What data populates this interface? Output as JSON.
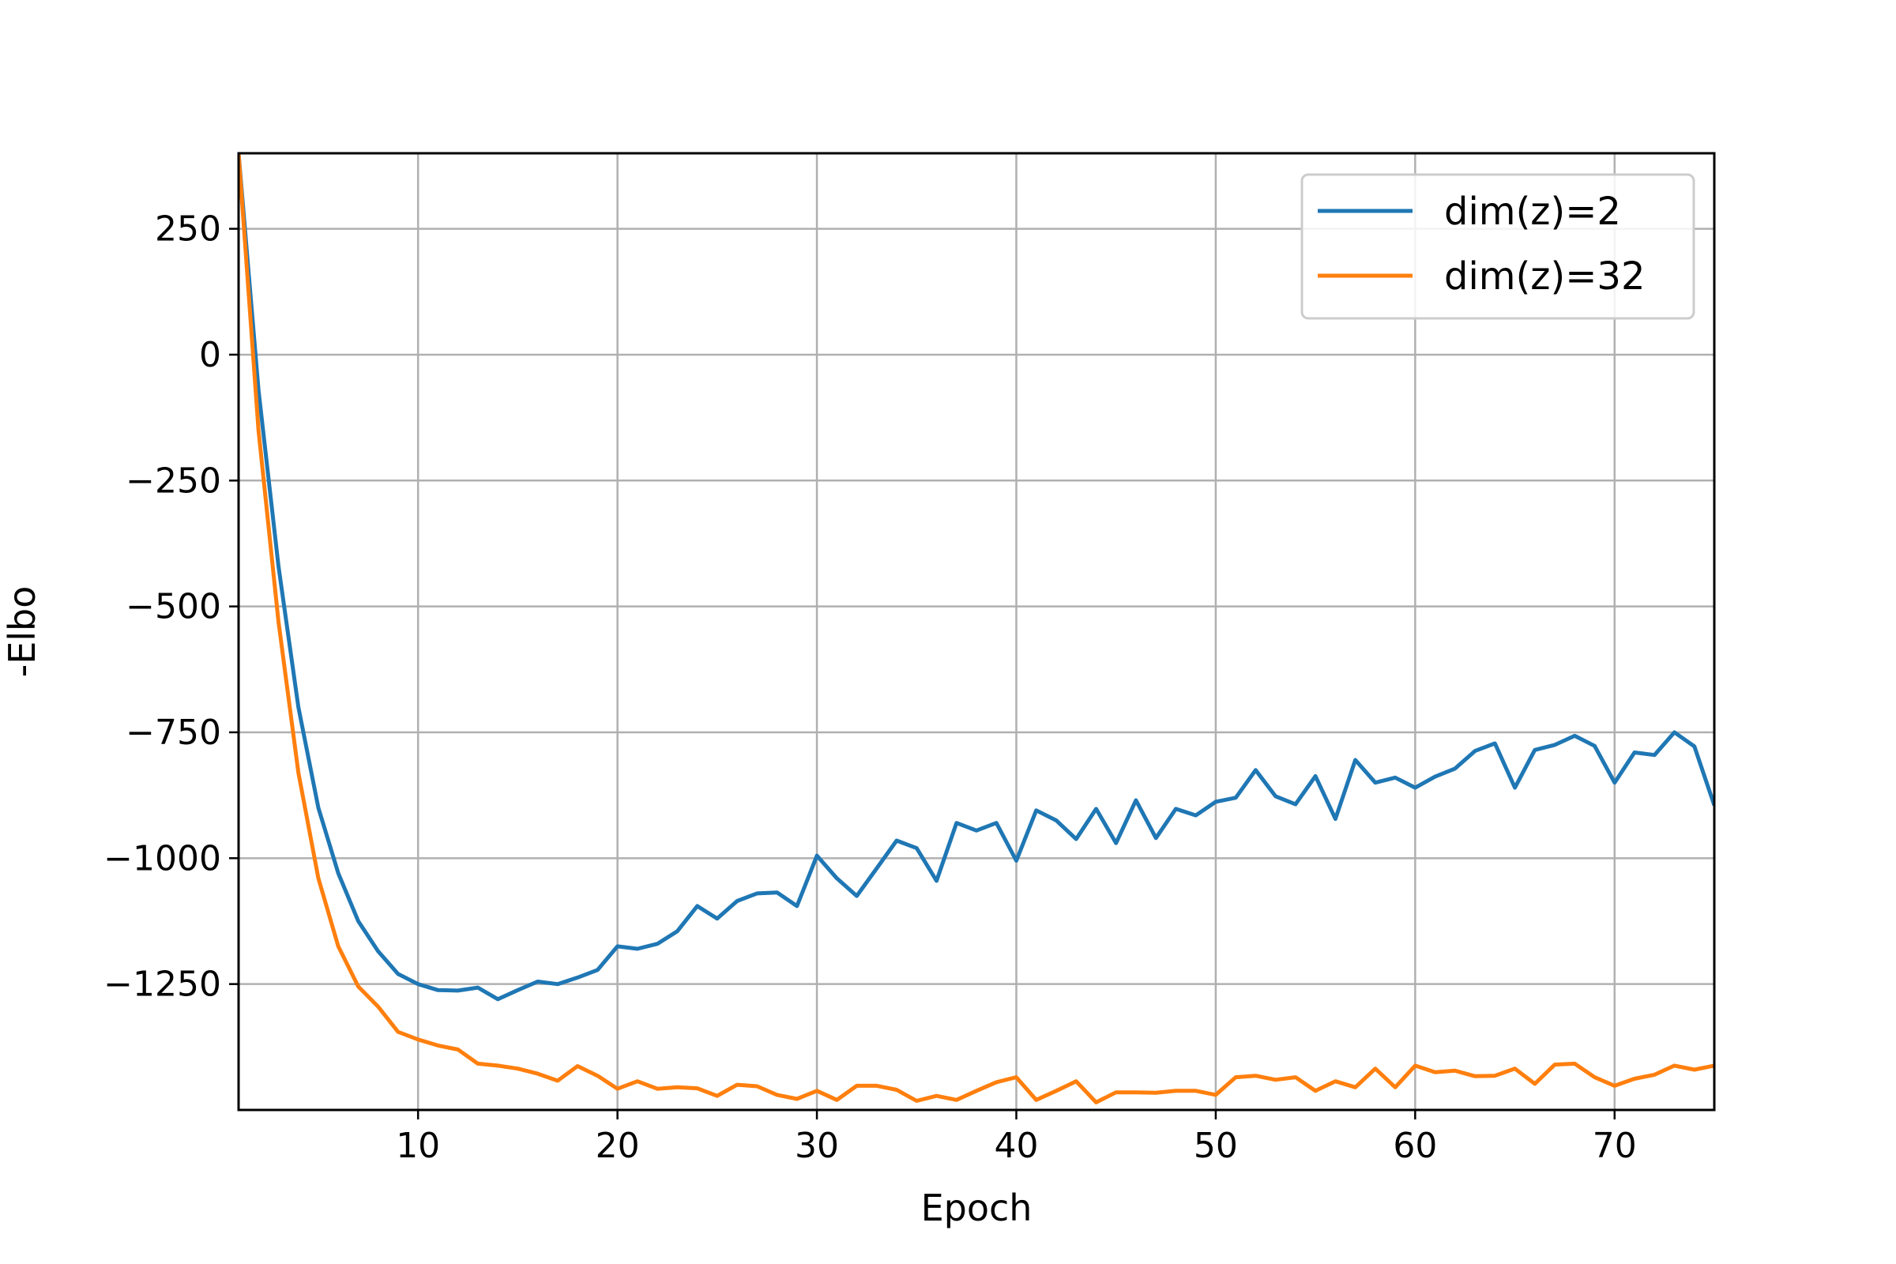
{
  "chart_data": {
    "type": "line",
    "xlabel": "Epoch",
    "ylabel": "-Elbo",
    "xlim": [
      1,
      75
    ],
    "ylim": [
      -1500,
      400
    ],
    "xticks": [
      10,
      20,
      30,
      40,
      50,
      60,
      70
    ],
    "yticks": [
      250,
      0,
      -250,
      -500,
      -750,
      -1000,
      -1250
    ],
    "ytick_labels": [
      "250",
      "0",
      "−250",
      "−500",
      "−750",
      "−1000",
      "−1250"
    ],
    "grid": true,
    "legend_position": "top-right",
    "x": [
      1,
      2,
      3,
      4,
      5,
      6,
      7,
      8,
      9,
      10,
      11,
      12,
      13,
      14,
      15,
      16,
      17,
      18,
      19,
      20,
      21,
      22,
      23,
      24,
      25,
      26,
      27,
      28,
      29,
      30,
      31,
      32,
      33,
      34,
      35,
      36,
      37,
      38,
      39,
      40,
      41,
      42,
      43,
      44,
      45,
      46,
      47,
      48,
      49,
      50,
      51,
      52,
      53,
      54,
      55,
      56,
      57,
      58,
      59,
      60,
      61,
      62,
      63,
      64,
      65,
      66,
      67,
      68,
      69,
      70,
      71,
      72,
      73,
      74,
      75
    ],
    "series": [
      {
        "name": "dim(z)=2",
        "color": "#1f77b4",
        "values": [
          400,
          -70,
          -420,
          -700,
          -900,
          -1030,
          -1125,
          -1185,
          -1230,
          -1250,
          -1262,
          -1263,
          -1257,
          -1280,
          -1262,
          -1245,
          -1250,
          -1237,
          -1222,
          -1175,
          -1180,
          -1170,
          -1145,
          -1095,
          -1120,
          -1085,
          -1070,
          -1068,
          -1095,
          -995,
          -1040,
          -1075,
          -1020,
          -965,
          -980,
          -1045,
          -930,
          -945,
          -930,
          -1005,
          -905,
          -925,
          -962,
          -902,
          -970,
          -885,
          -960,
          -902,
          -915,
          -888,
          -880,
          -825,
          -877,
          -893,
          -837,
          -922,
          -805,
          -850,
          -840,
          -860,
          -838,
          -822,
          -787,
          -772,
          -860,
          -785,
          -775,
          -757,
          -777,
          -850,
          -790,
          -795,
          -750,
          -778,
          -895
        ]
      },
      {
        "name": "dim(z)=32",
        "color": "#ff7f0e",
        "values": [
          400,
          -150,
          -530,
          -830,
          -1040,
          -1175,
          -1255,
          -1295,
          -1345,
          -1360,
          -1372,
          -1380,
          -1408,
          -1412,
          -1418,
          -1428,
          -1442,
          -1413,
          -1432,
          -1458,
          -1443,
          -1458,
          -1455,
          -1457,
          -1472,
          -1450,
          -1453,
          -1470,
          -1478,
          -1462,
          -1480,
          -1452,
          -1452,
          -1460,
          -1482,
          -1472,
          -1480,
          -1462,
          -1445,
          -1435,
          -1480,
          -1462,
          -1443,
          -1485,
          -1465,
          -1465,
          -1466,
          -1462,
          -1462,
          -1470,
          -1435,
          -1432,
          -1440,
          -1435,
          -1462,
          -1443,
          -1455,
          -1418,
          -1455,
          -1412,
          -1425,
          -1422,
          -1433,
          -1432,
          -1418,
          -1448,
          -1410,
          -1408,
          -1435,
          -1452,
          -1438,
          -1430,
          -1412,
          -1420,
          -1412
        ]
      }
    ]
  }
}
